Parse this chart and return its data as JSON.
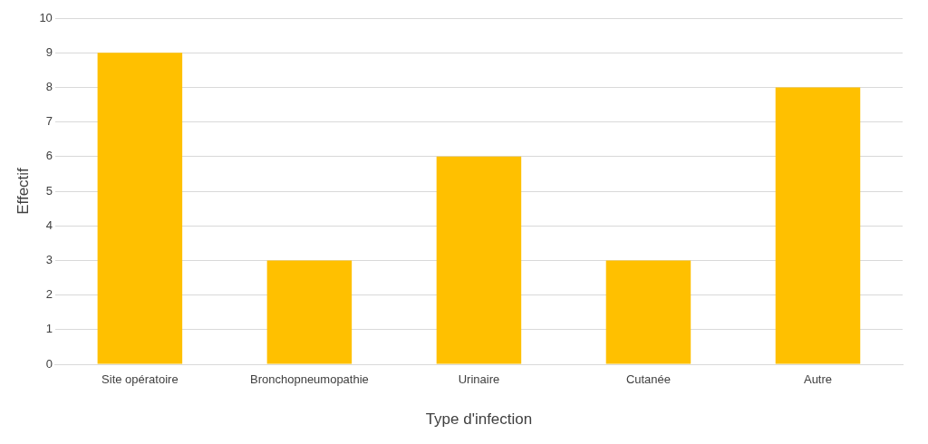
{
  "chart_data": {
    "type": "bar",
    "xlabel": "Type d'infection",
    "ylabel": "Effectif",
    "categories": [
      "Site opératoire",
      "Bronchopneumopathie",
      "Urinaire",
      "Cutanée",
      "Autre"
    ],
    "values": [
      9,
      3,
      6,
      3,
      8
    ],
    "color": "#ffc000",
    "ylim": [
      0,
      10
    ],
    "yticks": [
      0,
      1,
      2,
      3,
      4,
      5,
      6,
      7,
      8,
      9,
      10
    ],
    "grid": "y",
    "legend": false
  }
}
